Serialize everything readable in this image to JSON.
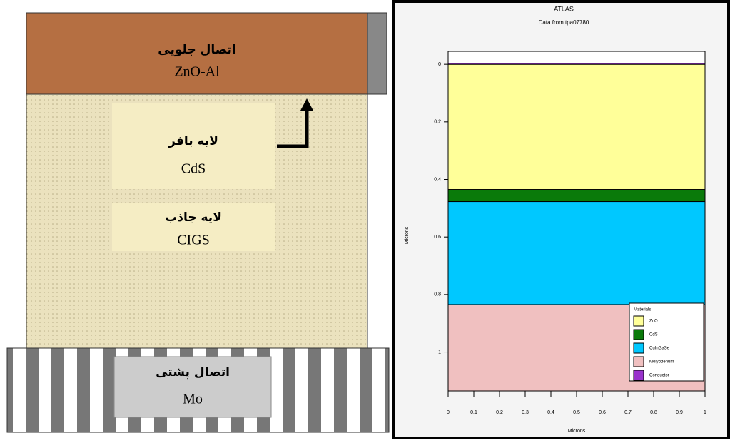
{
  "diagram": {
    "front_contact": {
      "label": "اتصال جلویی",
      "material": "ZnO-Al"
    },
    "buffer_layer": {
      "label": "لایه بافر",
      "material": "CdS"
    },
    "absorber_layer": {
      "label": "لایه جاذب",
      "material": "CIGS"
    },
    "back_contact": {
      "label": "اتصال پشتی",
      "material": "Mo"
    }
  },
  "chart_data": {
    "type": "layers",
    "title": "ATLAS",
    "subtitle": "Data from tpa07780",
    "x_label": "Microns",
    "y_label": "Microns",
    "legend_title": "Materials",
    "xlim": [
      0,
      1
    ],
    "xticks": [
      0,
      0.1,
      0.2,
      0.3,
      0.4,
      0.5,
      0.6,
      0.7,
      0.8,
      0.9,
      1
    ],
    "ylim": [
      1.135,
      -0.045
    ],
    "yticks": [
      0,
      0.2,
      0.4,
      0.6,
      0.8,
      1
    ],
    "series": [
      {
        "name": "ZnO",
        "color": "#ffff99",
        "values": [
          0,
          0.435
        ]
      },
      {
        "name": "CdS",
        "color": "#0a7a0a",
        "values": [
          0.435,
          0.477
        ]
      },
      {
        "name": "CuInGaSe",
        "color": "#00c8ff",
        "values": [
          0.477,
          0.835
        ]
      },
      {
        "name": "Molybdenum",
        "color": "#f0c0c0",
        "values": [
          0.835,
          1.135
        ]
      },
      {
        "name": "Conductor",
        "color": "#9933cc",
        "values": [
          -0.004,
          0
        ]
      }
    ]
  }
}
